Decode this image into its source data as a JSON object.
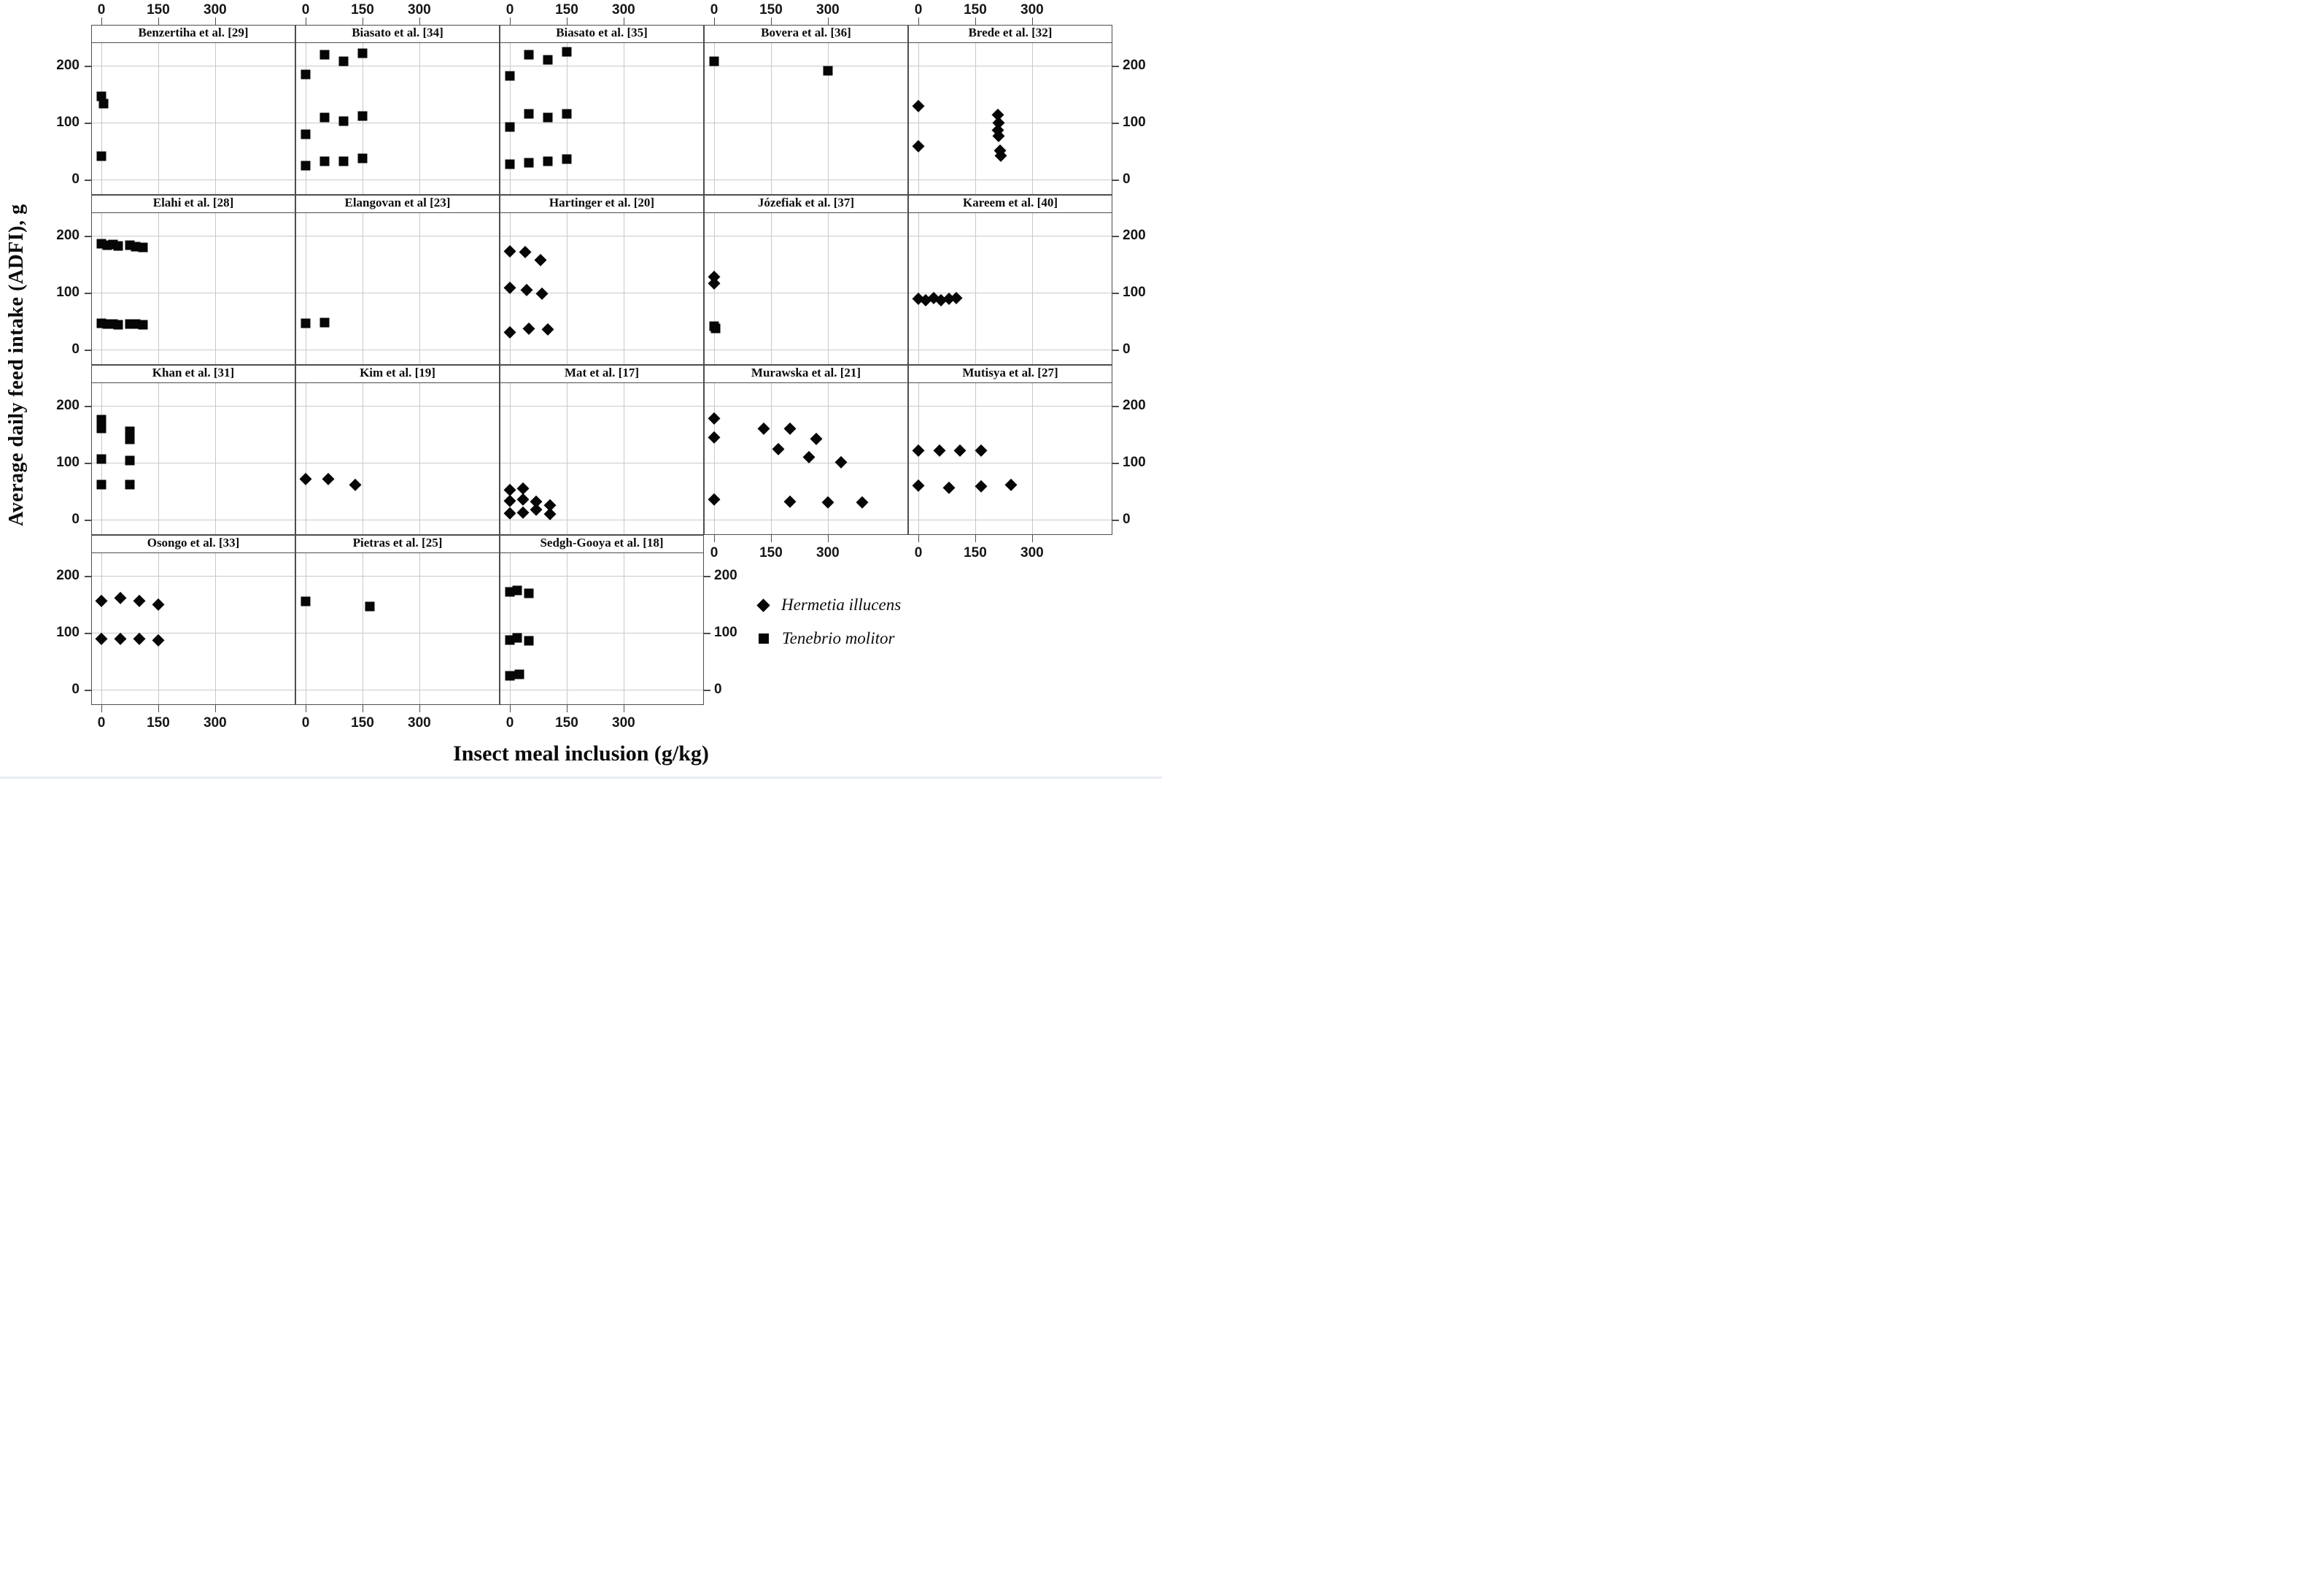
{
  "figure": {
    "x_axis_title": "Insect meal inclusion (g/kg)",
    "y_axis_title": "Average daily feed intake (ADFI), g",
    "colors": {
      "marker": "#060606",
      "grid": "#c9c9c9",
      "frame": "#4d4d4d",
      "text": "#161616"
    }
  },
  "legend": {
    "items": [
      {
        "label": "Hermetia illucens",
        "marker": "diamond"
      },
      {
        "label": "Tenebrio molitor",
        "marker": "square"
      }
    ]
  },
  "chart_data": {
    "type": "scatter",
    "title": "",
    "xlabel": "Insect meal inclusion (g/kg)",
    "ylabel": "Average daily feed intake (ADFI), g",
    "x_ticks": [
      0,
      150,
      300
    ],
    "y_ticks": [
      0,
      100,
      200
    ],
    "x_range": [
      -25,
      510
    ],
    "y_range": [
      -25,
      240
    ],
    "grid": true,
    "legend_position": "bottom-right",
    "facets": [
      {
        "title": "Benzertiha et al. [29]",
        "series": [
          {
            "name": "Tenebrio molitor",
            "marker": "square",
            "points": [
              [
                0,
                146
              ],
              [
                5,
                134
              ],
              [
                0,
                42
              ]
            ]
          }
        ]
      },
      {
        "title": "Biasato et al. [34]",
        "series": [
          {
            "name": "Tenebrio molitor",
            "marker": "square",
            "points": [
              [
                0,
                185
              ],
              [
                50,
                220
              ],
              [
                100,
                208
              ],
              [
                150,
                222
              ],
              [
                0,
                80
              ],
              [
                50,
                110
              ],
              [
                100,
                103
              ],
              [
                150,
                112
              ],
              [
                0,
                25
              ],
              [
                50,
                33
              ],
              [
                100,
                33
              ],
              [
                150,
                38
              ]
            ]
          }
        ]
      },
      {
        "title": "Biasato et al. [35]",
        "series": [
          {
            "name": "Tenebrio molitor",
            "marker": "square",
            "points": [
              [
                0,
                183
              ],
              [
                50,
                220
              ],
              [
                100,
                210
              ],
              [
                150,
                225
              ],
              [
                0,
                93
              ],
              [
                50,
                116
              ],
              [
                100,
                109
              ],
              [
                150,
                116
              ],
              [
                0,
                28
              ],
              [
                50,
                30
              ],
              [
                100,
                32
              ],
              [
                150,
                36
              ]
            ]
          }
        ]
      },
      {
        "title": "Bovera et al. [36]",
        "series": [
          {
            "name": "Tenebrio molitor",
            "marker": "square",
            "points": [
              [
                0,
                208
              ],
              [
                300,
                191
              ]
            ]
          }
        ]
      },
      {
        "title": "Brede et al. [32]",
        "series": [
          {
            "name": "Hermetia illucens",
            "marker": "diamond",
            "points": [
              [
                0,
                130
              ],
              [
                0,
                60
              ],
              [
                210,
                115
              ],
              [
                212,
                100
              ],
              [
                210,
                88
              ],
              [
                212,
                78
              ],
              [
                215,
                52
              ],
              [
                217,
                43
              ]
            ]
          }
        ]
      },
      {
        "title": "Elahi et al. [28]",
        "series": [
          {
            "name": "Tenebrio molitor",
            "marker": "square",
            "points": [
              [
                0,
                186
              ],
              [
                15,
                184
              ],
              [
                30,
                185
              ],
              [
                45,
                183
              ],
              [
                75,
                184
              ],
              [
                90,
                181
              ],
              [
                110,
                180
              ],
              [
                0,
                47
              ],
              [
                15,
                45
              ],
              [
                30,
                46
              ],
              [
                45,
                44
              ],
              [
                75,
                46
              ],
              [
                90,
                45
              ],
              [
                110,
                44
              ]
            ]
          }
        ]
      },
      {
        "title": "Elangovan et al [23]",
        "series": [
          {
            "name": "Tenebrio molitor",
            "marker": "square",
            "points": [
              [
                0,
                47
              ],
              [
                50,
                48
              ]
            ]
          }
        ]
      },
      {
        "title": "Hartinger et al. [20]",
        "series": [
          {
            "name": "Hermetia illucens",
            "marker": "diamond",
            "points": [
              [
                0,
                173
              ],
              [
                40,
                172
              ],
              [
                80,
                158
              ],
              [
                0,
                110
              ],
              [
                45,
                106
              ],
              [
                85,
                99
              ],
              [
                0,
                31
              ],
              [
                50,
                38
              ],
              [
                100,
                37
              ]
            ]
          }
        ]
      },
      {
        "title": "Józefiak et al. [37]",
        "series": [
          {
            "name": "Hermetia illucens",
            "marker": "diamond",
            "points": [
              [
                0,
                128
              ],
              [
                0,
                117
              ]
            ]
          },
          {
            "name": "Tenebrio molitor",
            "marker": "square",
            "points": [
              [
                0,
                42
              ],
              [
                4,
                38
              ]
            ]
          }
        ]
      },
      {
        "title": "Kareem et al. [40]",
        "series": [
          {
            "name": "Hermetia illucens",
            "marker": "diamond",
            "points": [
              [
                0,
                90
              ],
              [
                20,
                88
              ],
              [
                40,
                91
              ],
              [
                60,
                88
              ],
              [
                80,
                90
              ],
              [
                100,
                92
              ]
            ]
          }
        ]
      },
      {
        "title": "Khan et al. [31]",
        "series": [
          {
            "name": "Tenebrio molitor",
            "marker": "square",
            "points": [
              [
                0,
                176
              ],
              [
                0,
                160
              ],
              [
                75,
                156
              ],
              [
                75,
                141
              ],
              [
                0,
                107
              ],
              [
                75,
                104
              ],
              [
                0,
                62
              ],
              [
                75,
                62
              ]
            ]
          }
        ]
      },
      {
        "title": "Kim et al. [19]",
        "series": [
          {
            "name": "Hermetia illucens",
            "marker": "diamond",
            "points": [
              [
                0,
                72
              ],
              [
                60,
                72
              ],
              [
                130,
                62
              ]
            ]
          }
        ]
      },
      {
        "title": "Mat et al. [17]",
        "series": [
          {
            "name": "Hermetia illucens",
            "marker": "diamond",
            "points": [
              [
                0,
                53
              ],
              [
                0,
                34
              ],
              [
                0,
                12
              ],
              [
                35,
                56
              ],
              [
                35,
                36
              ],
              [
                35,
                13
              ],
              [
                70,
                33
              ],
              [
                70,
                18
              ],
              [
                105,
                26
              ],
              [
                105,
                11
              ]
            ]
          }
        ]
      },
      {
        "title": "Murawska et al. [21]",
        "series": [
          {
            "name": "Hermetia illucens",
            "marker": "diamond",
            "points": [
              [
                0,
                178
              ],
              [
                0,
                145
              ],
              [
                130,
                160
              ],
              [
                170,
                125
              ],
              [
                200,
                160
              ],
              [
                250,
                111
              ],
              [
                270,
                143
              ],
              [
                335,
                102
              ],
              [
                0,
                37
              ],
              [
                200,
                33
              ],
              [
                300,
                31
              ],
              [
                390,
                31
              ]
            ]
          }
        ]
      },
      {
        "title": "Mutisya et al. [27]",
        "series": [
          {
            "name": "Hermetia illucens",
            "marker": "diamond",
            "points": [
              [
                0,
                122
              ],
              [
                55,
                122
              ],
              [
                110,
                122
              ],
              [
                165,
                122
              ],
              [
                0,
                61
              ],
              [
                80,
                57
              ],
              [
                165,
                59
              ],
              [
                245,
                62
              ]
            ]
          }
        ]
      },
      {
        "title": "Osongo et al. [33]",
        "series": [
          {
            "name": "Hermetia illucens",
            "marker": "diamond",
            "points": [
              [
                0,
                157
              ],
              [
                50,
                162
              ],
              [
                100,
                157
              ],
              [
                150,
                151
              ],
              [
                0,
                90
              ],
              [
                50,
                90
              ],
              [
                100,
                90
              ],
              [
                150,
                88
              ]
            ]
          }
        ]
      },
      {
        "title": "Pietras et al. [25]",
        "series": [
          {
            "name": "Tenebrio molitor",
            "marker": "square",
            "points": [
              [
                0,
                155
              ],
              [
                170,
                146
              ]
            ]
          }
        ]
      },
      {
        "title": "Sedgh-Gooya et al. [18]",
        "series": [
          {
            "name": "Tenebrio molitor",
            "marker": "square",
            "points": [
              [
                0,
                172
              ],
              [
                20,
                175
              ],
              [
                50,
                170
              ],
              [
                0,
                88
              ],
              [
                20,
                91
              ],
              [
                50,
                86
              ],
              [
                0,
                25
              ],
              [
                25,
                27
              ]
            ]
          }
        ]
      }
    ]
  }
}
